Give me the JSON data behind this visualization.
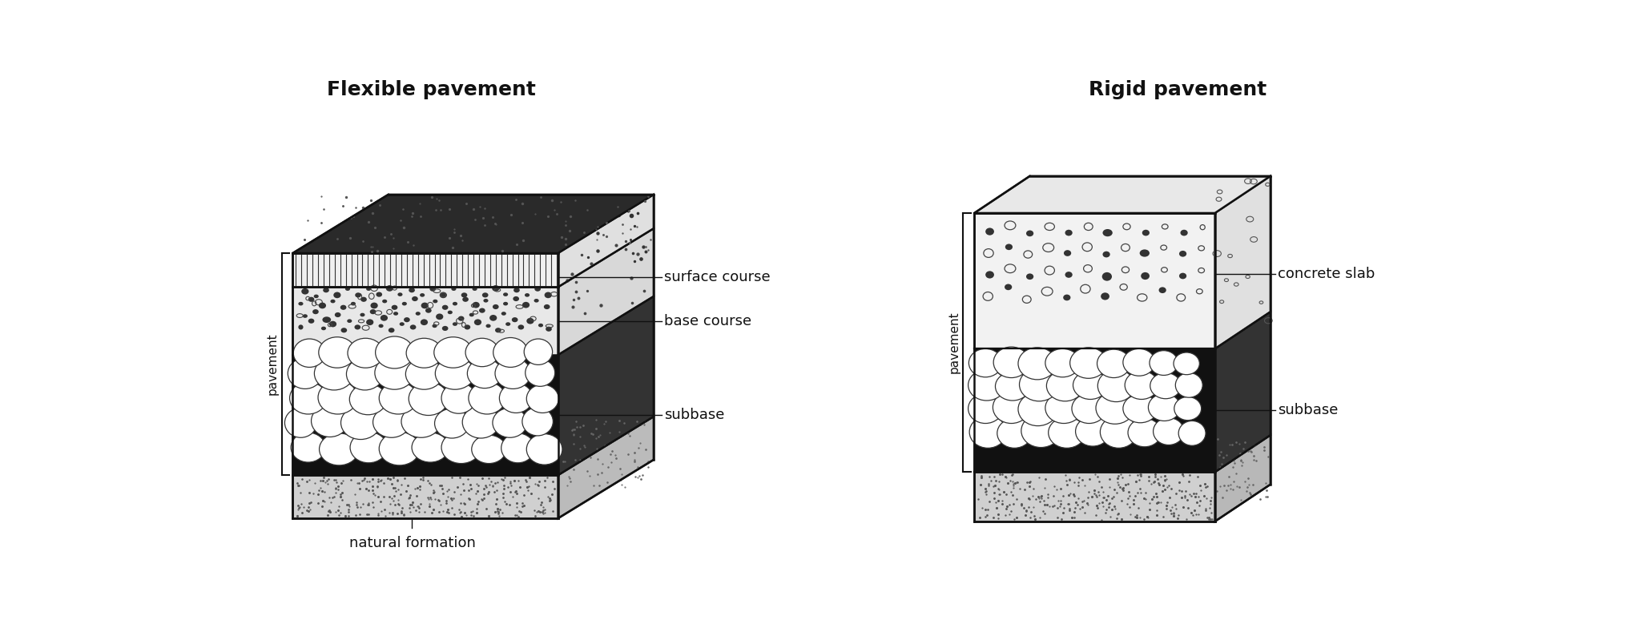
{
  "title_left": "Flexible pavement",
  "title_right": "Rigid pavement",
  "labels_left": [
    "surface course",
    "base course",
    "subbase",
    "natural formation"
  ],
  "labels_right": [
    "concrete slab",
    "subbase"
  ],
  "pavement_label": "pavement",
  "bg_color": "#ffffff",
  "line_color": "#111111",
  "title_fontsize": 18,
  "label_fontsize": 13,
  "lw_main": 1.8
}
